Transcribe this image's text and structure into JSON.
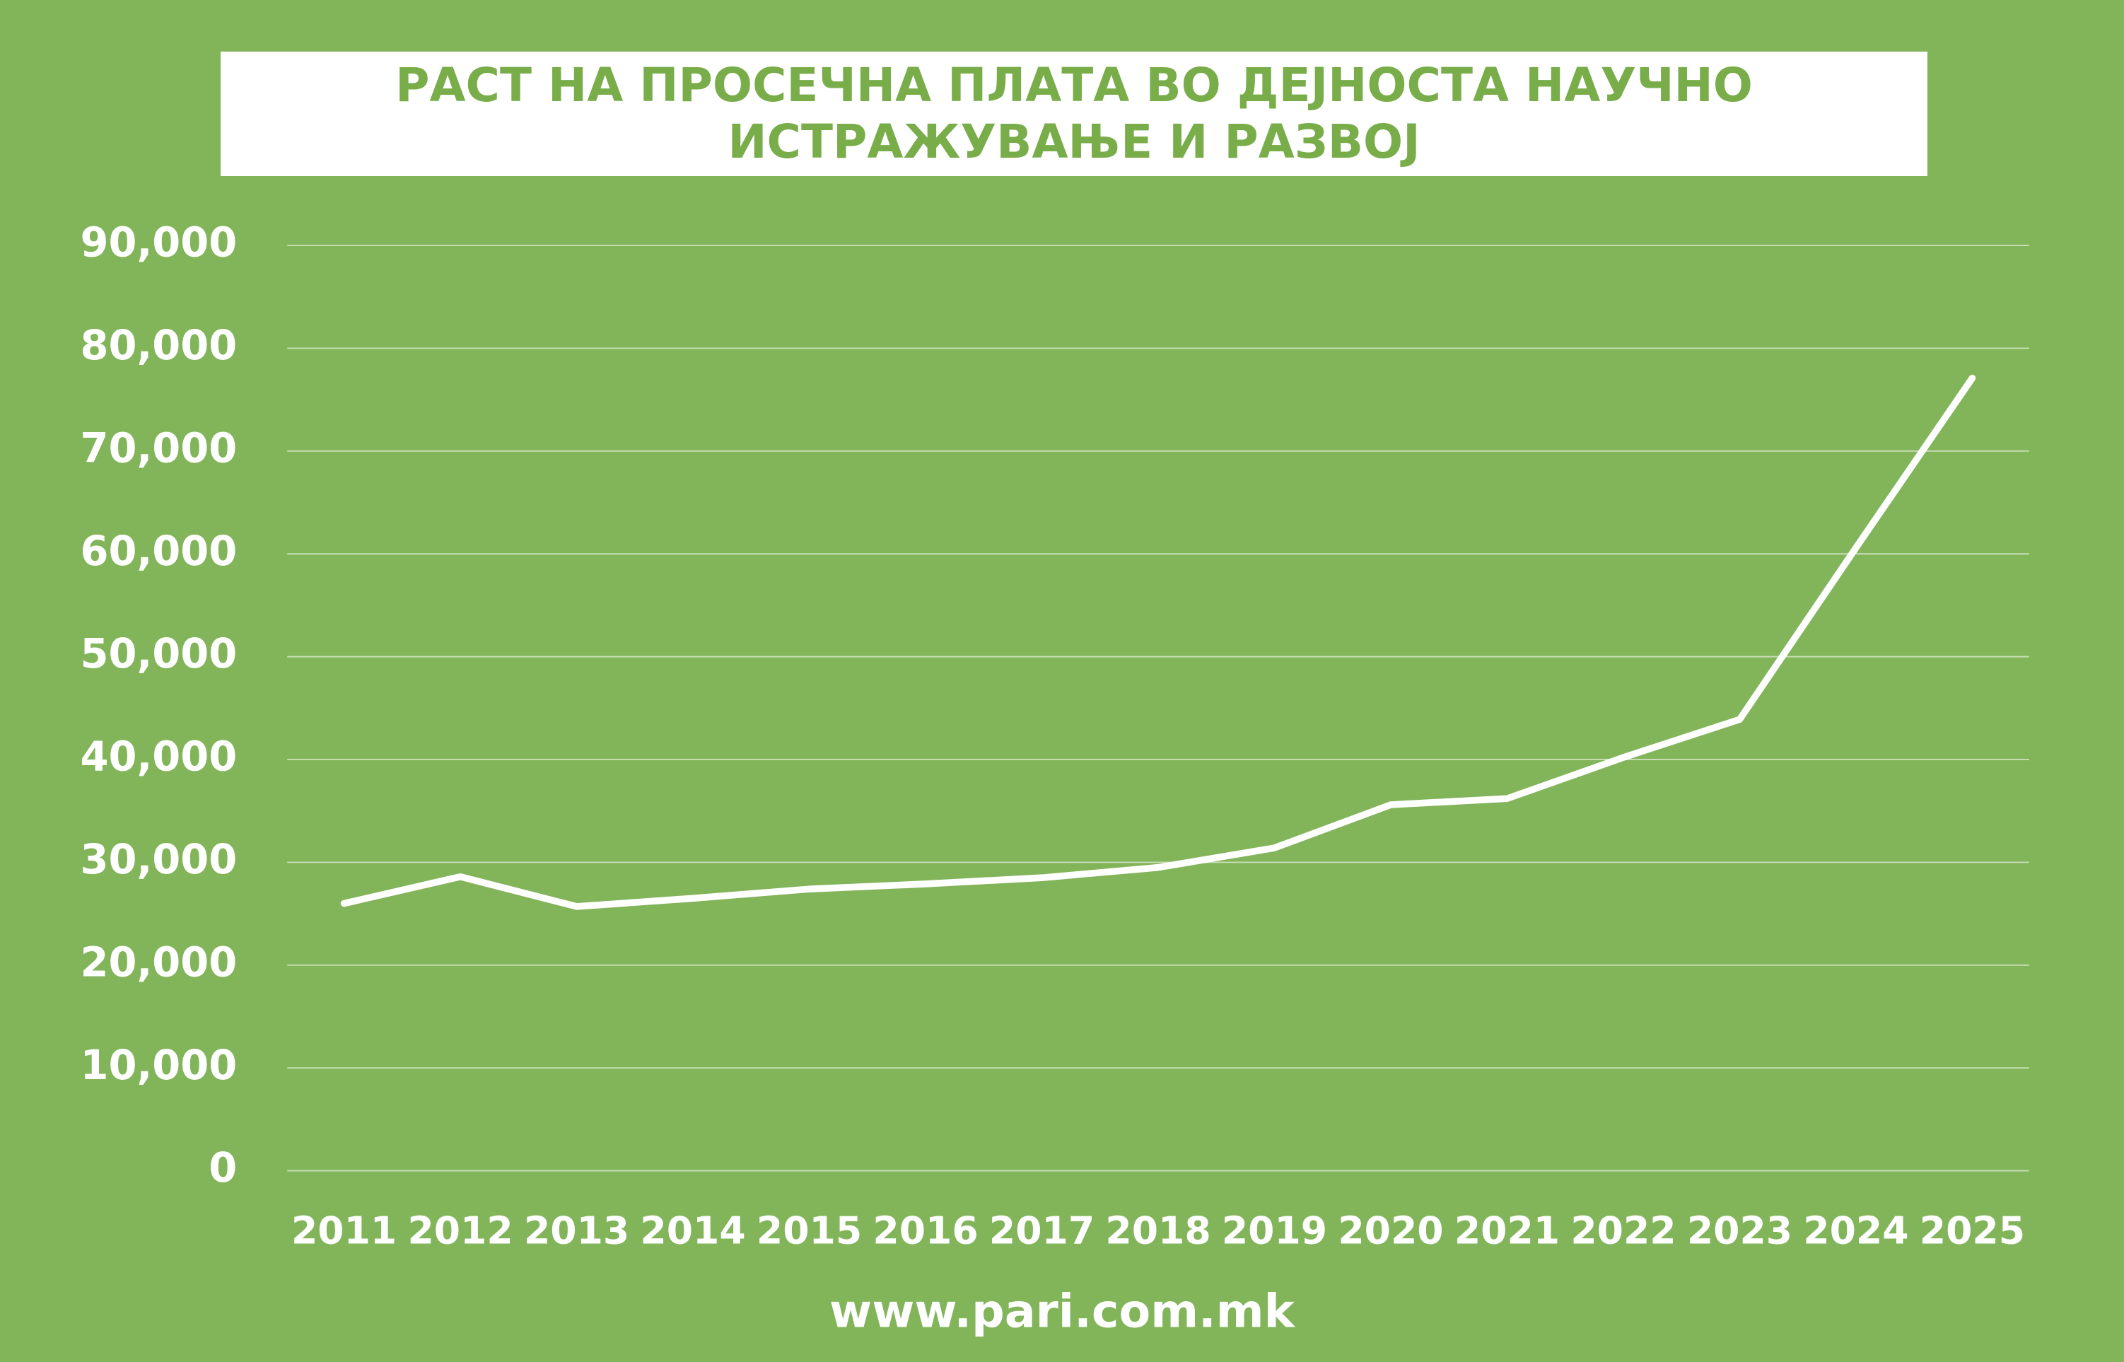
{
  "chart_data": {
    "type": "line",
    "title": "РАСТ НА ПРОСЕЧНА ПЛАТА ВО ДЕЈНОСТА НАУЧНО ИСТРАЖУВАЊЕ И РАЗВОЈ",
    "footer": "www.pari.com.mk",
    "categories": [
      "2011",
      "2012",
      "2013",
      "2014",
      "2015",
      "2016",
      "2017",
      "2018",
      "2019",
      "2020",
      "2021",
      "2022",
      "2023",
      "2024",
      "2025"
    ],
    "values": [
      26000,
      28600,
      25700,
      26500,
      27400,
      27900,
      28500,
      29500,
      31400,
      35600,
      36200,
      40200,
      43900,
      60600,
      77100
    ],
    "color": "#ffffff",
    "ylim": [
      0,
      90000
    ],
    "yticks": [
      0,
      {
        "value": 10000,
        "label": "10,000"
      },
      {
        "value": 20000,
        "label": "20,000"
      },
      {
        "value": 30000,
        "label": "30,000"
      },
      {
        "value": 40000,
        "label": "40,000"
      },
      {
        "value": 50000,
        "label": "50,000"
      },
      {
        "value": 60000,
        "label": "60,000"
      },
      {
        "value": 70000,
        "label": "70,000"
      },
      {
        "value": 80000,
        "label": "80,000"
      },
      {
        "value": 90000,
        "label": "90,000"
      }
    ],
    "grid": true
  }
}
